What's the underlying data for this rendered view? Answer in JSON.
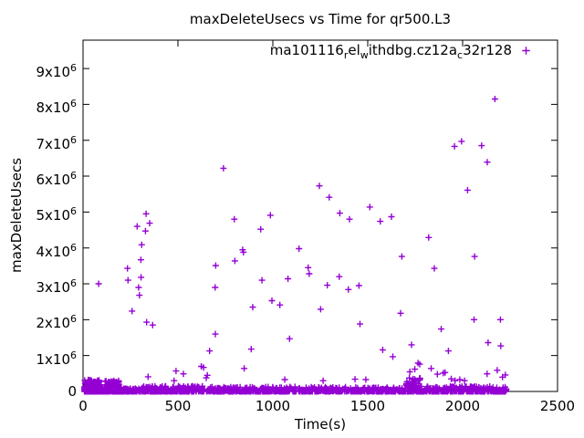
{
  "chart_data": {
    "type": "scatter",
    "title": "maxDeleteUsecs vs Time for qr500.L3",
    "xlabel": "Time(s)",
    "ylabel": "maxDeleteUsecs",
    "xlim": [
      0,
      2500
    ],
    "ylim": [
      0,
      9790000
    ],
    "grid": false,
    "background_color": "#ffffff",
    "frame_color": "#000000",
    "marker_color": "#9400D3",
    "xticks": [
      {
        "value": 0,
        "label": "0"
      },
      {
        "value": 500,
        "label": "500"
      },
      {
        "value": 1000,
        "label": "1000"
      },
      {
        "value": 1500,
        "label": "1500"
      },
      {
        "value": 2000,
        "label": "2000"
      },
      {
        "value": 2500,
        "label": "2500"
      }
    ],
    "yticks": [
      {
        "value": 0,
        "base": "0",
        "exp": ""
      },
      {
        "value": 1000000,
        "base": "1x10",
        "exp": "6"
      },
      {
        "value": 2000000,
        "base": "2x10",
        "exp": "6"
      },
      {
        "value": 3000000,
        "base": "3x10",
        "exp": "6"
      },
      {
        "value": 4000000,
        "base": "4x10",
        "exp": "6"
      },
      {
        "value": 5000000,
        "base": "5x10",
        "exp": "6"
      },
      {
        "value": 6000000,
        "base": "6x10",
        "exp": "6"
      },
      {
        "value": 7000000,
        "base": "7x10",
        "exp": "6"
      },
      {
        "value": 8000000,
        "base": "8x10",
        "exp": "6"
      },
      {
        "value": 9000000,
        "base": "9x10",
        "exp": "6"
      }
    ],
    "legend": {
      "position": "top-right-inside",
      "marker": "plus",
      "label_plain": "ma101116_rel_withdbg.cz12a_c32r128",
      "label_parts": [
        {
          "t": "ma101116"
        },
        {
          "t": "r",
          "sub": true
        },
        {
          "t": "el"
        },
        {
          "t": "w",
          "sub": true
        },
        {
          "t": "ithdbg.cz12a"
        },
        {
          "t": "c",
          "sub": true
        },
        {
          "t": "32r128"
        }
      ]
    },
    "series": [
      {
        "name": "ma101116_rel_withdbg.cz12a_c32r128",
        "color": "#9400D3",
        "marker": "plus",
        "points": [
          [
            82,
            3000000
          ],
          [
            234,
            3430000
          ],
          [
            237,
            3100000
          ],
          [
            258,
            2240000
          ],
          [
            285,
            4600000
          ],
          [
            293,
            2900000
          ],
          [
            297,
            2680000
          ],
          [
            305,
            3670000
          ],
          [
            306,
            3180000
          ],
          [
            309,
            4090000
          ],
          [
            329,
            4470000
          ],
          [
            332,
            4950000
          ],
          [
            335,
            1930000
          ],
          [
            343,
            410000
          ],
          [
            351,
            4690000
          ],
          [
            367,
            1850000
          ],
          [
            480,
            300000
          ],
          [
            490,
            570000
          ],
          [
            529,
            490000
          ],
          [
            623,
            700000
          ],
          [
            635,
            670000
          ],
          [
            649,
            380000
          ],
          [
            655,
            450000
          ],
          [
            667,
            1130000
          ],
          [
            696,
            2900000
          ],
          [
            697,
            1600000
          ],
          [
            699,
            3510000
          ],
          [
            740,
            6220000
          ],
          [
            797,
            4800000
          ],
          [
            800,
            3640000
          ],
          [
            841,
            3950000
          ],
          [
            845,
            3880000
          ],
          [
            849,
            640000
          ],
          [
            886,
            1180000
          ],
          [
            894,
            2350000
          ],
          [
            936,
            4520000
          ],
          [
            943,
            3100000
          ],
          [
            987,
            4910000
          ],
          [
            995,
            2530000
          ],
          [
            1037,
            2410000
          ],
          [
            1063,
            330000
          ],
          [
            1080,
            3140000
          ],
          [
            1088,
            1470000
          ],
          [
            1138,
            3980000
          ],
          [
            1186,
            3450000
          ],
          [
            1192,
            3280000
          ],
          [
            1245,
            5730000
          ],
          [
            1252,
            2290000
          ],
          [
            1265,
            300000
          ],
          [
            1287,
            2960000
          ],
          [
            1297,
            5410000
          ],
          [
            1350,
            3200000
          ],
          [
            1353,
            4970000
          ],
          [
            1398,
            2840000
          ],
          [
            1404,
            4800000
          ],
          [
            1433,
            340000
          ],
          [
            1454,
            2950000
          ],
          [
            1459,
            1880000
          ],
          [
            1490,
            330000
          ],
          [
            1511,
            5140000
          ],
          [
            1566,
            4740000
          ],
          [
            1579,
            1160000
          ],
          [
            1625,
            4870000
          ],
          [
            1632,
            970000
          ],
          [
            1673,
            2180000
          ],
          [
            1680,
            3760000
          ],
          [
            1722,
            550000
          ],
          [
            1731,
            1300000
          ],
          [
            1748,
            620000
          ],
          [
            1765,
            790000
          ],
          [
            1774,
            760000
          ],
          [
            1821,
            4290000
          ],
          [
            1834,
            640000
          ],
          [
            1851,
            3430000
          ],
          [
            1867,
            480000
          ],
          [
            1887,
            1740000
          ],
          [
            1898,
            510000
          ],
          [
            1907,
            530000
          ],
          [
            1925,
            1130000
          ],
          [
            1940,
            350000
          ],
          [
            1957,
            6830000
          ],
          [
            1960,
            300000
          ],
          [
            1985,
            330000
          ],
          [
            1994,
            6970000
          ],
          [
            2010,
            300000
          ],
          [
            2026,
            5610000
          ],
          [
            2060,
            2000000
          ],
          [
            2063,
            3760000
          ],
          [
            2100,
            6850000
          ],
          [
            2129,
            490000
          ],
          [
            2130,
            6390000
          ],
          [
            2134,
            1360000
          ],
          [
            2170,
            8150000
          ],
          [
            2182,
            590000
          ],
          [
            2199,
            2000000
          ],
          [
            2201,
            1270000
          ],
          [
            2210,
            400000
          ],
          [
            2225,
            460000
          ]
        ],
        "baseline_band": {
          "description": "dense cluster of samples between 0 and ~0.35e6 usecs across 0-2230 s",
          "seed": 1337,
          "value_skew": 2.5,
          "segments": [
            [
              5,
              95,
              320000,
              260
            ],
            [
              95,
              115,
              120000,
              40
            ],
            [
              115,
              190,
              300000,
              170
            ],
            [
              190,
              310,
              80000,
              120
            ],
            [
              310,
              640,
              150000,
              260
            ],
            [
              640,
              1450,
              130000,
              480
            ],
            [
              1450,
              1700,
              110000,
              150
            ],
            [
              1700,
              1790,
              380000,
              90
            ],
            [
              1790,
              2230,
              140000,
              280
            ]
          ]
        }
      }
    ]
  }
}
